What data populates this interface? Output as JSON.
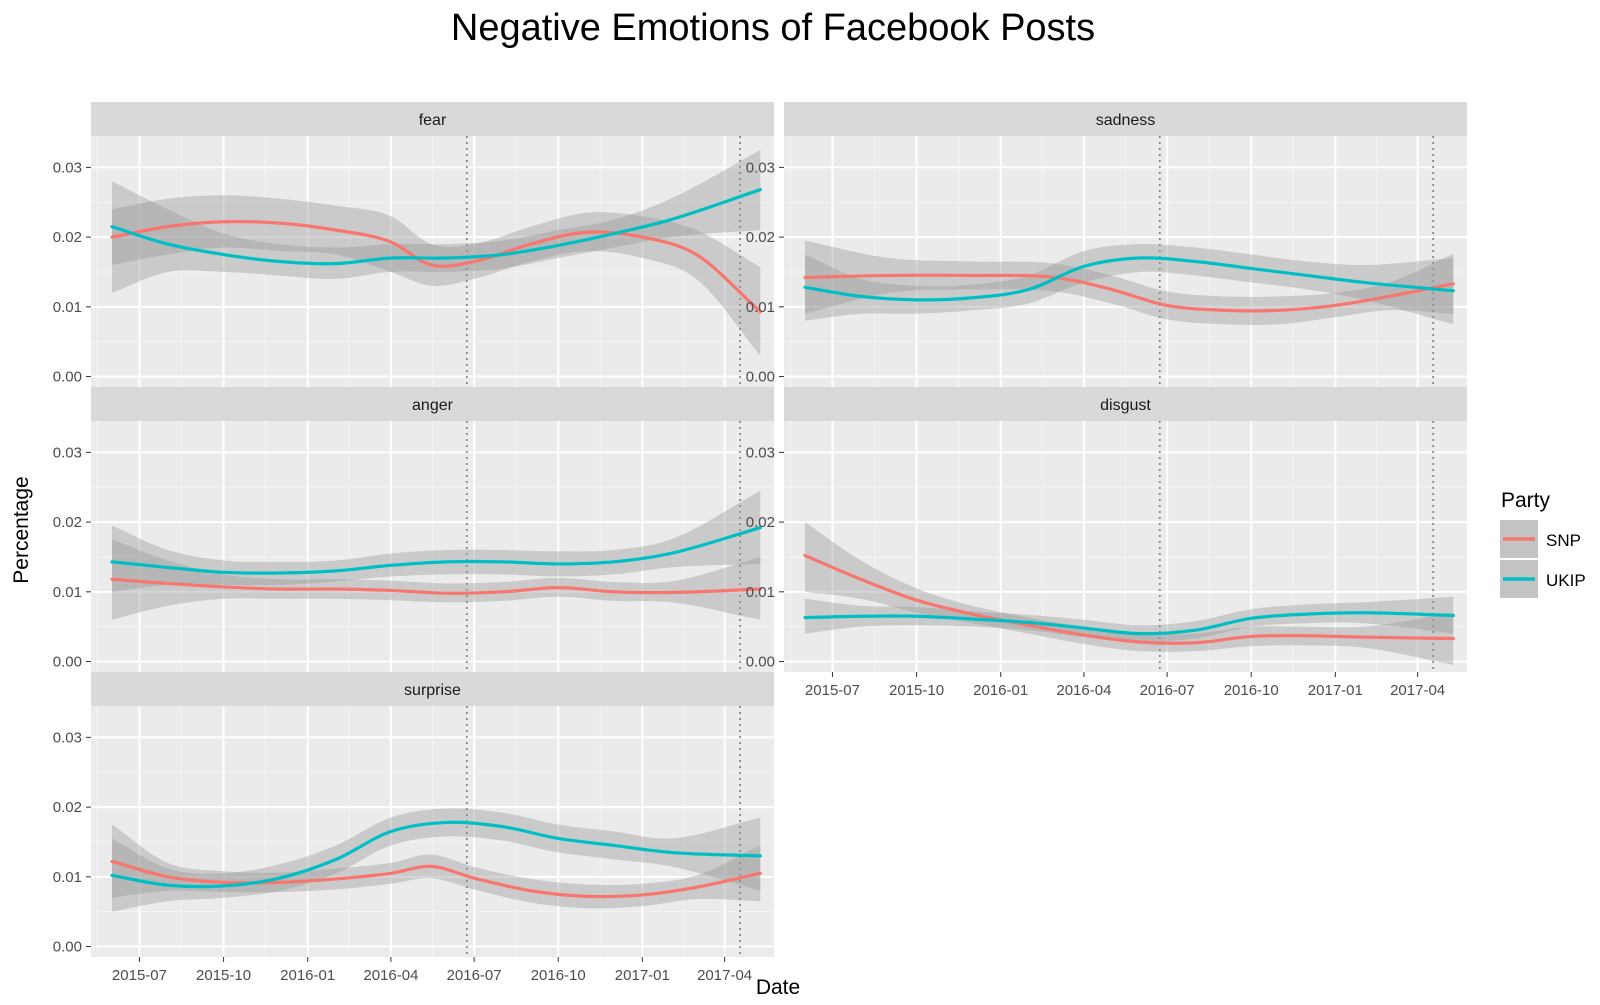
{
  "title": "Negative Emotions of Facebook Posts",
  "legend": {
    "title": "Party",
    "entries": [
      {
        "label": "SNP",
        "color": "#F8766D"
      },
      {
        "label": "UKIP",
        "color": "#00BFC4"
      }
    ]
  },
  "chart_data": {
    "type": "line",
    "title": "Negative Emotions of Facebook Posts",
    "xlabel": "Date",
    "ylabel": "Percentage",
    "ylim": [
      -0.0015,
      0.0345
    ],
    "y_ticks": [
      "0.00",
      "0.01",
      "0.02",
      "0.03"
    ],
    "y_tick_values": [
      0,
      0.01,
      0.02,
      0.03
    ],
    "x_ticks": [
      "2015-07",
      "2015-10",
      "2016-01",
      "2016-04",
      "2016-07",
      "2016-10",
      "2017-01",
      "2017-04"
    ],
    "x_tick_dates": [
      "2015-07-01",
      "2015-10-01",
      "2016-01-01",
      "2016-04-01",
      "2016-07-01",
      "2016-10-01",
      "2017-01-01",
      "2017-04-01"
    ],
    "xlim": [
      "2015-05-09",
      "2017-05-25"
    ],
    "reference_lines": [
      "2016-06-23",
      "2017-04-18"
    ],
    "legend_position": "right",
    "grid": true,
    "facets": [
      {
        "label": "fear",
        "series": [
          {
            "name": "SNP",
            "color": "#F8766D",
            "x": [
              "2015-06-01",
              "2015-08-01",
              "2015-10-01",
              "2015-12-01",
              "2016-02-01",
              "2016-04-01",
              "2016-05-15",
              "2016-07-01",
              "2016-09-01",
              "2016-11-01",
              "2017-01-01",
              "2017-03-01",
              "2017-05-10"
            ],
            "y": [
              0.02,
              0.0215,
              0.0222,
              0.022,
              0.021,
              0.0193,
              0.016,
              0.0165,
              0.019,
              0.0207,
              0.02,
              0.0175,
              0.0093
            ],
            "lower": [
              0.016,
              0.0175,
              0.0185,
              0.018,
              0.0175,
              0.015,
              0.013,
              0.014,
              0.0165,
              0.018,
              0.017,
              0.014,
              0.003
            ],
            "upper": [
              0.024,
              0.0255,
              0.026,
              0.0255,
              0.0245,
              0.023,
              0.019,
              0.019,
              0.0215,
              0.0235,
              0.023,
              0.021,
              0.0157
            ]
          },
          {
            "name": "UKIP",
            "color": "#00BFC4",
            "x": [
              "2015-06-01",
              "2015-08-01",
              "2015-10-01",
              "2015-12-01",
              "2016-02-01",
              "2016-04-01",
              "2016-06-01",
              "2016-08-01",
              "2016-10-01",
              "2016-12-01",
              "2017-02-01",
              "2017-05-10"
            ],
            "y": [
              0.0215,
              0.019,
              0.0175,
              0.0165,
              0.0162,
              0.017,
              0.017,
              0.0175,
              0.0188,
              0.0205,
              0.0225,
              0.0268
            ],
            "lower": [
              0.012,
              0.015,
              0.015,
              0.0145,
              0.014,
              0.015,
              0.015,
              0.0155,
              0.017,
              0.0185,
              0.02,
              0.021
            ],
            "upper": [
              0.028,
              0.024,
              0.0205,
              0.019,
              0.0185,
              0.019,
              0.019,
              0.0195,
              0.021,
              0.0225,
              0.0255,
              0.0325
            ]
          }
        ]
      },
      {
        "label": "sadness",
        "series": [
          {
            "name": "SNP",
            "color": "#F8766D",
            "x": [
              "2015-06-01",
              "2015-09-01",
              "2015-12-01",
              "2016-03-01",
              "2016-05-01",
              "2016-07-01",
              "2016-09-01",
              "2016-11-01",
              "2017-01-01",
              "2017-03-01",
              "2017-05-10"
            ],
            "y": [
              0.0142,
              0.0145,
              0.0145,
              0.0142,
              0.0125,
              0.0102,
              0.0095,
              0.0095,
              0.0102,
              0.0115,
              0.0133
            ],
            "lower": [
              0.009,
              0.012,
              0.0125,
              0.0122,
              0.0105,
              0.0082,
              0.0075,
              0.0075,
              0.0085,
              0.0095,
              0.009
            ],
            "upper": [
              0.0195,
              0.017,
              0.0165,
              0.0162,
              0.0145,
              0.0122,
              0.0115,
              0.0115,
              0.012,
              0.0135,
              0.0176
            ]
          },
          {
            "name": "UKIP",
            "color": "#00BFC4",
            "x": [
              "2015-06-01",
              "2015-08-01",
              "2015-10-01",
              "2015-12-01",
              "2016-02-01",
              "2016-04-01",
              "2016-06-01",
              "2016-08-01",
              "2016-10-01",
              "2016-12-01",
              "2017-02-01",
              "2017-05-10"
            ],
            "y": [
              0.0128,
              0.0115,
              0.011,
              0.0113,
              0.0125,
              0.0158,
              0.017,
              0.0165,
              0.0155,
              0.0145,
              0.0135,
              0.0123
            ],
            "lower": [
              0.008,
              0.009,
              0.009,
              0.0095,
              0.0105,
              0.0135,
              0.015,
              0.0145,
              0.0135,
              0.0125,
              0.011,
              0.0075
            ],
            "upper": [
              0.0175,
              0.014,
              0.013,
              0.0132,
              0.0145,
              0.018,
              0.019,
              0.0185,
              0.0175,
              0.0165,
              0.016,
              0.017
            ]
          }
        ]
      },
      {
        "label": "anger",
        "series": [
          {
            "name": "SNP",
            "color": "#F8766D",
            "x": [
              "2015-06-01",
              "2015-08-01",
              "2015-10-01",
              "2015-12-01",
              "2016-02-01",
              "2016-04-01",
              "2016-06-01",
              "2016-08-01",
              "2016-10-01",
              "2016-12-01",
              "2017-02-01",
              "2017-05-10"
            ],
            "y": [
              0.0118,
              0.0112,
              0.0107,
              0.0104,
              0.0104,
              0.0102,
              0.0098,
              0.01,
              0.0106,
              0.01,
              0.0099,
              0.0104
            ],
            "lower": [
              0.006,
              0.008,
              0.009,
              0.009,
              0.009,
              0.0088,
              0.0085,
              0.0087,
              0.0093,
              0.0087,
              0.0085,
              0.006
            ],
            "upper": [
              0.0175,
              0.0145,
              0.0125,
              0.0118,
              0.0118,
              0.0116,
              0.0112,
              0.0114,
              0.012,
              0.0114,
              0.0115,
              0.015
            ]
          },
          {
            "name": "UKIP",
            "color": "#00BFC4",
            "x": [
              "2015-06-01",
              "2015-08-01",
              "2015-10-01",
              "2015-12-01",
              "2016-02-01",
              "2016-04-01",
              "2016-06-01",
              "2016-08-01",
              "2016-10-01",
              "2016-12-01",
              "2017-02-01",
              "2017-05-10"
            ],
            "y": [
              0.0143,
              0.0135,
              0.0128,
              0.0127,
              0.013,
              0.0138,
              0.0143,
              0.0143,
              0.014,
              0.0143,
              0.0155,
              0.0192
            ],
            "lower": [
              0.01,
              0.011,
              0.011,
              0.011,
              0.0115,
              0.0122,
              0.0125,
              0.0125,
              0.0122,
              0.0125,
              0.0135,
              0.014
            ],
            "upper": [
              0.0195,
              0.016,
              0.0145,
              0.0143,
              0.0145,
              0.0155,
              0.016,
              0.016,
              0.0158,
              0.016,
              0.0175,
              0.0245
            ]
          }
        ]
      },
      {
        "label": "disgust",
        "series": [
          {
            "name": "SNP",
            "color": "#F8766D",
            "x": [
              "2015-06-01",
              "2015-08-01",
              "2015-10-01",
              "2015-12-01",
              "2016-02-01",
              "2016-04-01",
              "2016-06-01",
              "2016-08-01",
              "2016-10-01",
              "2016-12-01",
              "2017-02-01",
              "2017-05-10"
            ],
            "y": [
              0.0152,
              0.0118,
              0.0088,
              0.0068,
              0.0052,
              0.0038,
              0.0028,
              0.0027,
              0.0036,
              0.0037,
              0.0035,
              0.0033
            ],
            "lower": [
              0.01,
              0.009,
              0.007,
              0.0055,
              0.004,
              0.0025,
              0.0015,
              0.0015,
              0.0022,
              0.0023,
              0.002,
              -0.0005
            ],
            "upper": [
              0.02,
              0.0145,
              0.0105,
              0.008,
              0.0063,
              0.005,
              0.004,
              0.004,
              0.005,
              0.005,
              0.005,
              0.007
            ]
          },
          {
            "name": "UKIP",
            "color": "#00BFC4",
            "x": [
              "2015-06-01",
              "2015-08-01",
              "2015-10-01",
              "2015-12-01",
              "2016-02-01",
              "2016-04-01",
              "2016-06-01",
              "2016-08-01",
              "2016-10-01",
              "2016-12-01",
              "2017-02-01",
              "2017-05-10"
            ],
            "y": [
              0.0063,
              0.0065,
              0.0065,
              0.0061,
              0.0056,
              0.0048,
              0.004,
              0.0045,
              0.0062,
              0.0068,
              0.007,
              0.0066
            ],
            "lower": [
              0.004,
              0.005,
              0.0052,
              0.005,
              0.0045,
              0.0035,
              0.0028,
              0.0033,
              0.005,
              0.0055,
              0.0055,
              0.004
            ],
            "upper": [
              0.009,
              0.008,
              0.0078,
              0.0072,
              0.0067,
              0.006,
              0.0052,
              0.0058,
              0.0075,
              0.0082,
              0.0085,
              0.0093
            ]
          }
        ]
      },
      {
        "label": "surprise",
        "series": [
          {
            "name": "SNP",
            "color": "#F8766D",
            "x": [
              "2015-06-01",
              "2015-08-01",
              "2015-10-01",
              "2015-12-01",
              "2016-02-01",
              "2016-04-01",
              "2016-05-15",
              "2016-07-01",
              "2016-09-01",
              "2016-11-01",
              "2017-01-01",
              "2017-03-01",
              "2017-05-10"
            ],
            "y": [
              0.0122,
              0.01,
              0.0092,
              0.0092,
              0.0097,
              0.0105,
              0.0115,
              0.0098,
              0.008,
              0.0072,
              0.0074,
              0.0085,
              0.0105
            ],
            "lower": [
              0.007,
              0.008,
              0.0078,
              0.0078,
              0.0082,
              0.009,
              0.0098,
              0.0082,
              0.0063,
              0.0055,
              0.0058,
              0.0068,
              0.0065
            ],
            "upper": [
              0.0175,
              0.012,
              0.0108,
              0.0106,
              0.0112,
              0.012,
              0.0132,
              0.0114,
              0.0097,
              0.0089,
              0.009,
              0.0102,
              0.0145
            ]
          },
          {
            "name": "UKIP",
            "color": "#00BFC4",
            "x": [
              "2015-06-01",
              "2015-08-01",
              "2015-10-01",
              "2015-12-01",
              "2016-02-01",
              "2016-04-01",
              "2016-06-01",
              "2016-08-01",
              "2016-10-01",
              "2016-12-01",
              "2017-02-01",
              "2017-05-10"
            ],
            "y": [
              0.0102,
              0.0088,
              0.0087,
              0.0098,
              0.0125,
              0.0165,
              0.0178,
              0.0172,
              0.0155,
              0.0145,
              0.0135,
              0.013
            ],
            "lower": [
              0.005,
              0.0065,
              0.007,
              0.008,
              0.0105,
              0.0145,
              0.0158,
              0.0152,
              0.0135,
              0.0125,
              0.0115,
              0.008
            ],
            "upper": [
              0.0155,
              0.0112,
              0.0105,
              0.0118,
              0.0145,
              0.0185,
              0.0198,
              0.0192,
              0.0175,
              0.0165,
              0.0155,
              0.0185
            ]
          }
        ]
      }
    ]
  }
}
